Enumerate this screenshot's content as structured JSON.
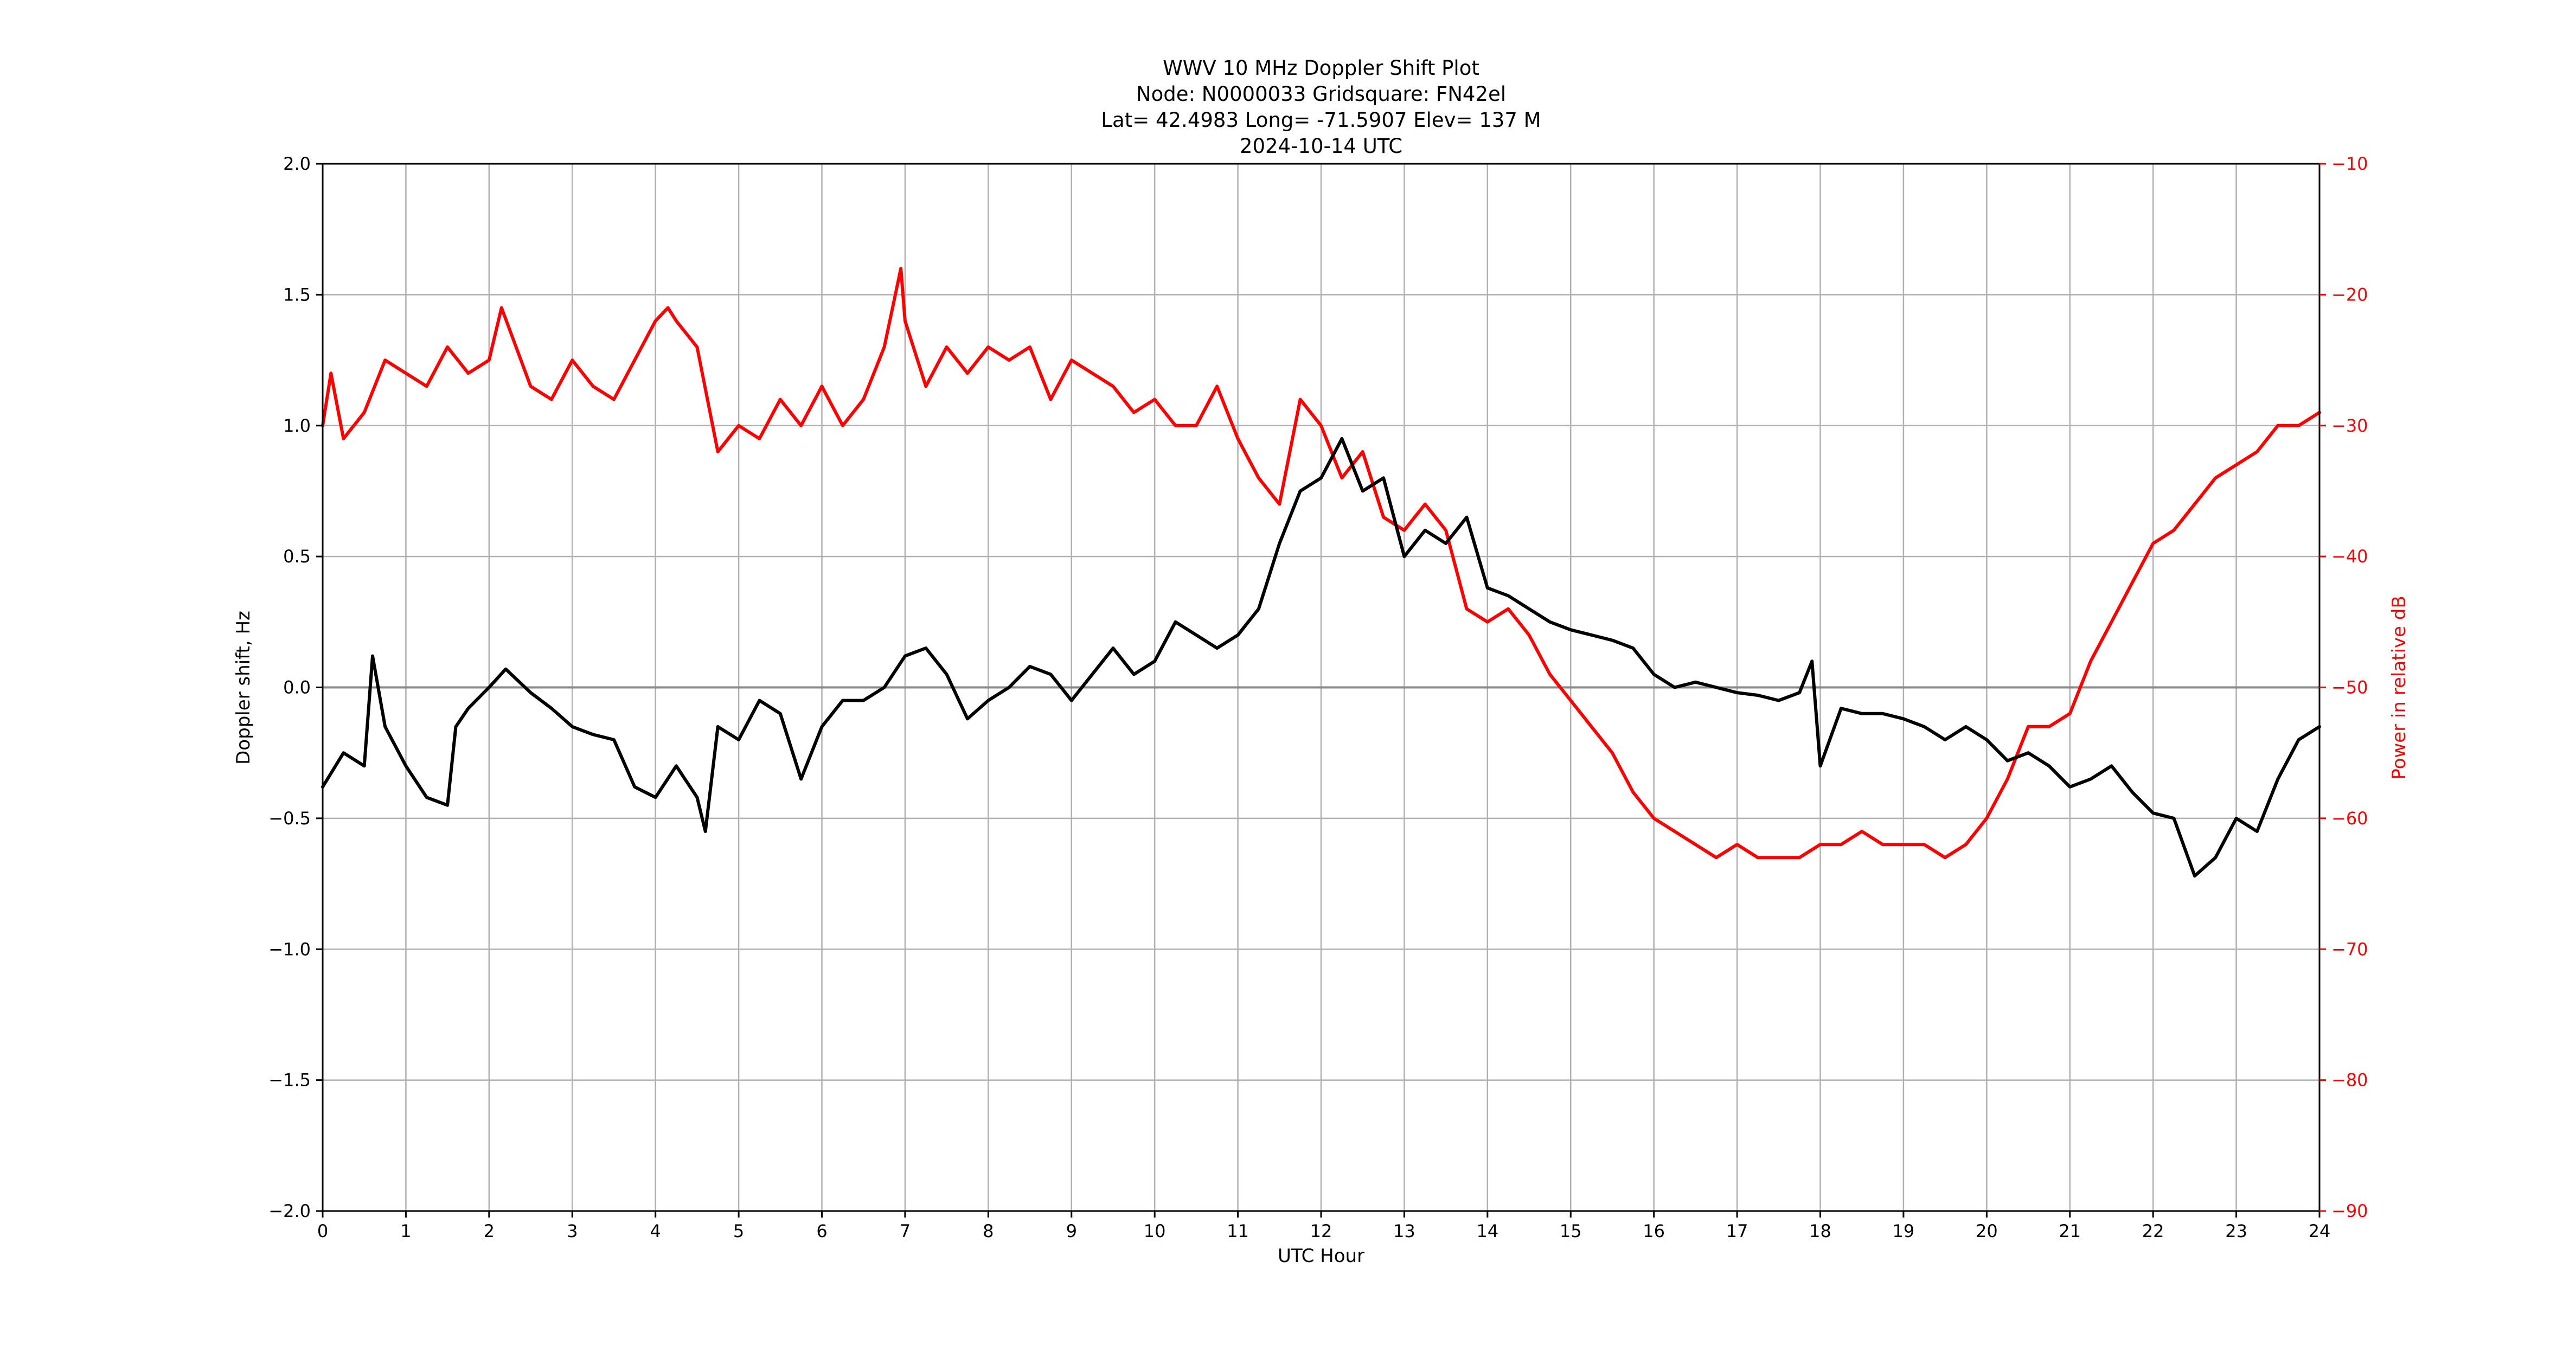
{
  "chart_data": {
    "type": "line",
    "title": [
      "WWV 10 MHz Doppler Shift Plot",
      "Node:  N0000033     Gridsquare:  FN42el",
      "Lat= 42.4983    Long= -71.5907    Elev= 137 M",
      "2024-10-14  UTC"
    ],
    "xlabel": "UTC Hour",
    "ylabel": "Doppler shift, Hz",
    "y2label": "Power in relative dB",
    "xlim": [
      0,
      24
    ],
    "ylim": [
      -2.0,
      2.0
    ],
    "y2lim": [
      -90,
      -10
    ],
    "xticks": [
      0,
      1,
      2,
      3,
      4,
      5,
      6,
      7,
      8,
      9,
      10,
      11,
      12,
      13,
      14,
      15,
      16,
      17,
      18,
      19,
      20,
      21,
      22,
      23,
      24
    ],
    "xtick_labels": [
      "0",
      "1",
      "2",
      "3",
      "4",
      "5",
      "6",
      "7",
      "8",
      "9",
      "10",
      "11",
      "12",
      "13",
      "14",
      "15",
      "16",
      "17",
      "18",
      "19",
      "20",
      "21",
      "22",
      "23",
      "24"
    ],
    "yticks": [
      -2.0,
      -1.5,
      -1.0,
      -0.5,
      0.0,
      0.5,
      1.0,
      1.5,
      2.0
    ],
    "ytick_labels": [
      "−2.0",
      "−1.5",
      "−1.0",
      "−0.5",
      "0.0",
      "0.5",
      "1.0",
      "1.5",
      "2.0"
    ],
    "y2ticks": [
      -90,
      -80,
      -70,
      -60,
      -50,
      -40,
      -30,
      -20,
      -10
    ],
    "y2tick_labels": [
      "−90",
      "−80",
      "−70",
      "−60",
      "−50",
      "−40",
      "−30",
      "−20",
      "−10"
    ],
    "grid": true,
    "zero_line": true,
    "colors": {
      "doppler": "#000000",
      "power": "#ff0000",
      "grid": "#b0b0b0",
      "axes": "#000000"
    },
    "series": [
      {
        "axis": "left",
        "color": "#000000",
        "x": [
          0,
          0.25,
          0.5,
          0.6,
          0.75,
          1.0,
          1.25,
          1.5,
          1.6,
          1.75,
          2.0,
          2.2,
          2.5,
          2.75,
          3.0,
          3.25,
          3.5,
          3.75,
          4.0,
          4.25,
          4.5,
          4.6,
          4.75,
          5.0,
          5.25,
          5.5,
          5.75,
          6.0,
          6.25,
          6.5,
          6.75,
          7.0,
          7.25,
          7.5,
          7.75,
          8.0,
          8.25,
          8.5,
          8.75,
          9.0,
          9.25,
          9.5,
          9.75,
          10.0,
          10.25,
          10.5,
          10.75,
          11.0,
          11.25,
          11.5,
          11.75,
          12.0,
          12.25,
          12.5,
          12.75,
          13.0,
          13.25,
          13.5,
          13.75,
          14.0,
          14.25,
          14.5,
          14.75,
          15.0,
          15.25,
          15.5,
          15.75,
          16.0,
          16.25,
          16.5,
          16.75,
          17.0,
          17.25,
          17.5,
          17.75,
          17.9,
          18.0,
          18.25,
          18.5,
          18.75,
          19.0,
          19.25,
          19.5,
          19.75,
          20.0,
          20.25,
          20.5,
          20.75,
          21.0,
          21.25,
          21.5,
          21.75,
          22.0,
          22.25,
          22.5,
          22.75,
          23.0,
          23.25,
          23.5,
          23.75,
          24.0
        ],
        "values": [
          -0.38,
          -0.25,
          -0.3,
          0.12,
          -0.15,
          -0.3,
          -0.42,
          -0.45,
          -0.15,
          -0.08,
          0.0,
          0.07,
          -0.02,
          -0.08,
          -0.15,
          -0.18,
          -0.2,
          -0.38,
          -0.42,
          -0.3,
          -0.42,
          -0.55,
          -0.15,
          -0.2,
          -0.05,
          -0.1,
          -0.35,
          -0.15,
          -0.05,
          -0.05,
          0.0,
          0.12,
          0.15,
          0.05,
          -0.12,
          -0.05,
          0.0,
          0.08,
          0.05,
          -0.05,
          0.05,
          0.15,
          0.05,
          0.1,
          0.25,
          0.2,
          0.15,
          0.2,
          0.3,
          0.55,
          0.75,
          0.8,
          0.95,
          0.75,
          0.8,
          0.5,
          0.6,
          0.55,
          0.65,
          0.38,
          0.35,
          0.3,
          0.25,
          0.22,
          0.2,
          0.18,
          0.15,
          0.05,
          0.0,
          0.02,
          0.0,
          -0.02,
          -0.03,
          -0.05,
          -0.02,
          0.1,
          -0.3,
          -0.08,
          -0.1,
          -0.1,
          -0.12,
          -0.15,
          -0.2,
          -0.15,
          -0.2,
          -0.28,
          -0.25,
          -0.3,
          -0.38,
          -0.35,
          -0.3,
          -0.4,
          -0.48,
          -0.5,
          -0.72,
          -0.65,
          -0.5,
          -0.55,
          -0.35,
          -0.2,
          -0.15
        ]
      },
      {
        "axis": "right",
        "color": "#ff0000",
        "x": [
          0,
          0.1,
          0.25,
          0.5,
          0.75,
          1.0,
          1.25,
          1.5,
          1.75,
          2.0,
          2.15,
          2.5,
          2.75,
          3.0,
          3.25,
          3.5,
          3.75,
          4.0,
          4.15,
          4.25,
          4.5,
          4.75,
          5.0,
          5.25,
          5.5,
          5.75,
          6.0,
          6.25,
          6.5,
          6.75,
          6.95,
          7.0,
          7.25,
          7.5,
          7.75,
          8.0,
          8.25,
          8.5,
          8.75,
          9.0,
          9.25,
          9.5,
          9.75,
          10.0,
          10.25,
          10.5,
          10.75,
          11.0,
          11.25,
          11.5,
          11.75,
          12.0,
          12.25,
          12.5,
          12.75,
          13.0,
          13.25,
          13.5,
          13.75,
          14.0,
          14.25,
          14.5,
          14.75,
          15.0,
          15.25,
          15.5,
          15.75,
          16.0,
          16.25,
          16.5,
          16.75,
          17.0,
          17.25,
          17.5,
          17.75,
          18.0,
          18.25,
          18.5,
          18.75,
          19.0,
          19.25,
          19.5,
          19.75,
          20.0,
          20.25,
          20.5,
          20.75,
          21.0,
          21.25,
          21.5,
          21.75,
          22.0,
          22.25,
          22.5,
          22.75,
          23.0,
          23.25,
          23.5,
          23.75,
          24.0
        ],
        "values": [
          -30,
          -26,
          -31,
          -29,
          -25,
          -26,
          -27,
          -24,
          -26,
          -25,
          -21,
          -27,
          -28,
          -25,
          -27,
          -28,
          -25,
          -22,
          -21,
          -22,
          -24,
          -32,
          -30,
          -31,
          -28,
          -30,
          -27,
          -30,
          -28,
          -24,
          -18,
          -22,
          -27,
          -24,
          -26,
          -24,
          -25,
          -24,
          -28,
          -25,
          -26,
          -27,
          -29,
          -28,
          -30,
          -30,
          -27,
          -31,
          -34,
          -36,
          -28,
          -30,
          -34,
          -32,
          -37,
          -38,
          -36,
          -38,
          -44,
          -45,
          -44,
          -46,
          -49,
          -51,
          -53,
          -55,
          -58,
          -60,
          -61,
          -62,
          -63,
          -62,
          -63,
          -63,
          -63,
          -62,
          -62,
          -61,
          -62,
          -62,
          -62,
          -63,
          -62,
          -60,
          -57,
          -53,
          -53,
          -52,
          -48,
          -45,
          -42,
          -39,
          -38,
          -36,
          -34,
          -33,
          -32,
          -30,
          -30,
          -29
        ]
      }
    ]
  }
}
